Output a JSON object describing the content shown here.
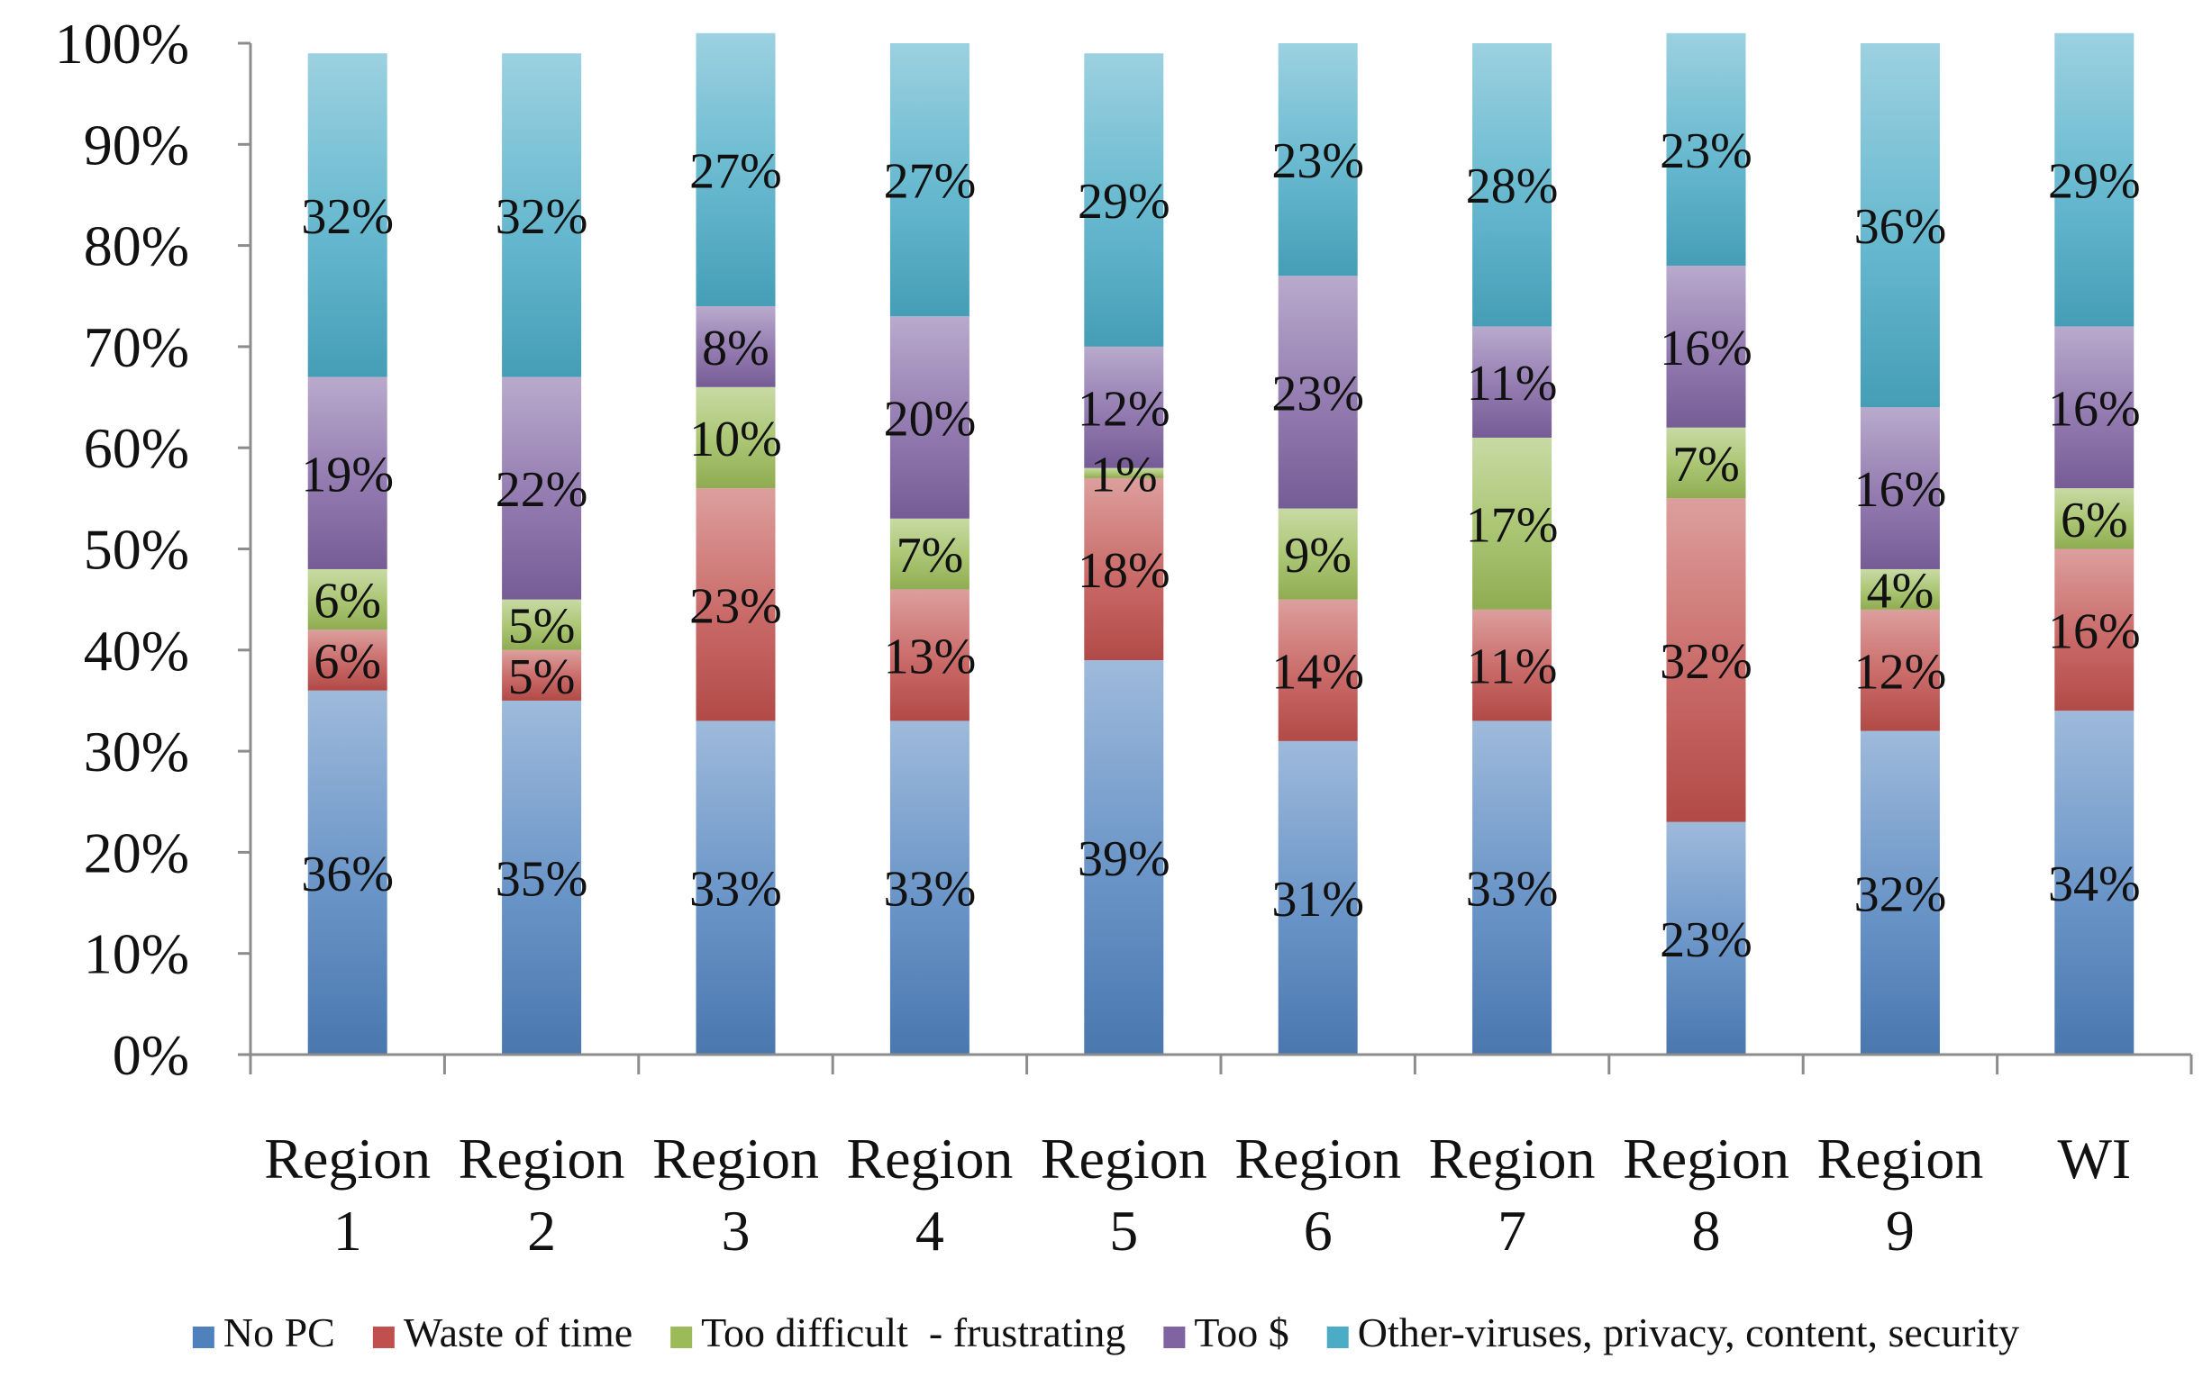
{
  "chart_data": {
    "type": "bar",
    "stacked": true,
    "orientation": "vertical",
    "title": "",
    "xlabel": "",
    "ylabel": "",
    "ylim": [
      0,
      100
    ],
    "y_ticks": [
      "0%",
      "10%",
      "20%",
      "30%",
      "40%",
      "50%",
      "60%",
      "70%",
      "80%",
      "90%",
      "100%"
    ],
    "grid": false,
    "legend_position": "bottom",
    "categories": [
      [
        "Region",
        "1"
      ],
      [
        "Region",
        "2"
      ],
      [
        "Region",
        "3"
      ],
      [
        "Region",
        "4"
      ],
      [
        "Region",
        "5"
      ],
      [
        "Region",
        "6"
      ],
      [
        "Region",
        "7"
      ],
      [
        "Region",
        "8"
      ],
      [
        "Region",
        "9"
      ],
      [
        "WI"
      ]
    ],
    "series": [
      {
        "name": "No PC",
        "color": "#4f81bd",
        "values": [
          36,
          35,
          33,
          33,
          39,
          31,
          33,
          23,
          32,
          34
        ],
        "labels": [
          "36%",
          "35%",
          "33%",
          "33%",
          "39%",
          "31%",
          "33%",
          "23%",
          "32%",
          "34%"
        ]
      },
      {
        "name": "Waste of time",
        "color": "#c0504d",
        "values": [
          6,
          5,
          23,
          13,
          18,
          14,
          11,
          32,
          12,
          16
        ],
        "labels": [
          "6%",
          "5%",
          "23%",
          "13%",
          "18%",
          "14%",
          "11%",
          "32%",
          "12%",
          "16%"
        ]
      },
      {
        "name": "Too difficult  - frustrating",
        "color": "#9bbb59",
        "values": [
          6,
          5,
          10,
          7,
          1,
          9,
          17,
          7,
          4,
          6
        ],
        "labels": [
          "6%",
          "5%",
          "10%",
          "7%",
          "1%",
          "9%",
          "17%",
          "7%",
          "4%",
          "6%"
        ]
      },
      {
        "name": "Too $",
        "color": "#8064a2",
        "values": [
          19,
          22,
          8,
          20,
          12,
          23,
          11,
          16,
          16,
          16
        ],
        "labels": [
          "19%",
          "22%",
          "8%",
          "20%",
          "12%",
          "23%",
          "11%",
          "16%",
          "16%",
          "16%"
        ]
      },
      {
        "name": "Other-viruses, privacy, content, security",
        "color": "#4bacc6",
        "values": [
          32,
          32,
          27,
          27,
          29,
          23,
          28,
          23,
          36,
          29
        ],
        "labels": [
          "32%",
          "32%",
          "27%",
          "27%",
          "29%",
          "23%",
          "28%",
          "23%",
          "36%",
          "29%"
        ]
      }
    ]
  }
}
